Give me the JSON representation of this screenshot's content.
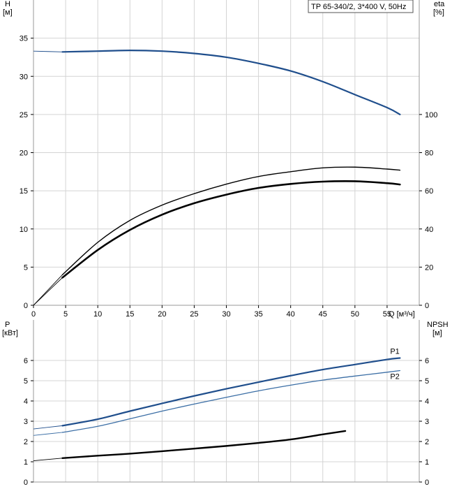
{
  "chart_data": [
    {
      "type": "line",
      "title": "TP 65-340/2, 3*400 V, 50Hz",
      "xlabel": "Q [м³/ч]",
      "ylabel_left": [
        "H",
        "[м]"
      ],
      "ylabel_right": [
        "eta",
        "[%]"
      ],
      "xlim": [
        0,
        60
      ],
      "ylim_left": [
        0,
        40
      ],
      "ylim_right": [
        0,
        160
      ],
      "x_ticks": [
        0,
        5,
        10,
        15,
        20,
        25,
        30,
        35,
        40,
        45,
        50,
        55
      ],
      "y_left_ticks": [
        0,
        5,
        10,
        15,
        20,
        25,
        30,
        35
      ],
      "y_right_ticks": [
        0,
        20,
        40,
        60,
        80,
        100
      ],
      "grid": true,
      "series": [
        {
          "axis": "left",
          "color": "#1f4e8c",
          "width": 2.2,
          "points": [
            [
              4.5,
              33.2
            ],
            [
              10,
              33.3
            ],
            [
              15,
              33.4
            ],
            [
              20,
              33.3
            ],
            [
              25,
              33.0
            ],
            [
              30,
              32.5
            ],
            [
              35,
              31.7
            ],
            [
              40,
              30.7
            ],
            [
              45,
              29.3
            ],
            [
              50,
              27.6
            ],
            [
              55,
              25.9
            ],
            [
              57,
              25.0
            ]
          ],
          "extension": [
            [
              0,
              33.3
            ],
            [
              4.5,
              33.2
            ]
          ]
        },
        {
          "axis": "right",
          "color": "#000000",
          "width": 1.4,
          "points": [
            [
              4.5,
              16
            ],
            [
              10,
              33
            ],
            [
              15,
              44.5
            ],
            [
              20,
              52.5
            ],
            [
              25,
              58.5
            ],
            [
              30,
              63.5
            ],
            [
              35,
              67.5
            ],
            [
              40,
              70
            ],
            [
              45,
              72
            ],
            [
              50,
              72.4
            ],
            [
              55,
              71.4
            ],
            [
              57,
              70.8
            ]
          ],
          "extension": [
            [
              0,
              0
            ],
            [
              4.5,
              16
            ]
          ]
        },
        {
          "axis": "right",
          "color": "#000000",
          "width": 2.6,
          "points": [
            [
              4.5,
              14.5
            ],
            [
              10,
              29
            ],
            [
              15,
              39.5
            ],
            [
              20,
              47.5
            ],
            [
              25,
              53.5
            ],
            [
              30,
              58
            ],
            [
              35,
              61.5
            ],
            [
              40,
              63.6
            ],
            [
              45,
              64.8
            ],
            [
              50,
              65
            ],
            [
              55,
              64
            ],
            [
              57,
              63.3
            ]
          ],
          "extension": [
            [
              0,
              0
            ],
            [
              4.5,
              14.5
            ]
          ]
        }
      ]
    },
    {
      "type": "line",
      "ylabel_left": [
        "P",
        "[кВт]"
      ],
      "ylabel_right": [
        "NPSH",
        "[м]"
      ],
      "xlim": [
        0,
        60
      ],
      "ylim_left": [
        0,
        8
      ],
      "ylim_right": [
        0,
        8
      ],
      "y_left_ticks": [
        0,
        1,
        2,
        3,
        4,
        5,
        6
      ],
      "y_right_ticks": [
        0,
        1,
        2,
        3,
        4,
        5,
        6
      ],
      "grid": true,
      "series": [
        {
          "name": "P1",
          "axis": "left",
          "color": "#1f4e8c",
          "width": 2.2,
          "points": [
            [
              4.5,
              2.78
            ],
            [
              10,
              3.1
            ],
            [
              15,
              3.5
            ],
            [
              20,
              3.88
            ],
            [
              25,
              4.25
            ],
            [
              30,
              4.6
            ],
            [
              35,
              4.93
            ],
            [
              40,
              5.25
            ],
            [
              45,
              5.55
            ],
            [
              50,
              5.8
            ],
            [
              55,
              6.05
            ],
            [
              57,
              6.12
            ]
          ],
          "extension": [
            [
              0,
              2.62
            ],
            [
              4.5,
              2.78
            ]
          ]
        },
        {
          "name": "P2",
          "axis": "left",
          "color": "#3b6ea5",
          "width": 1.3,
          "points": [
            [
              4.5,
              2.45
            ],
            [
              10,
              2.75
            ],
            [
              15,
              3.12
            ],
            [
              20,
              3.5
            ],
            [
              25,
              3.85
            ],
            [
              30,
              4.18
            ],
            [
              35,
              4.5
            ],
            [
              40,
              4.78
            ],
            [
              45,
              5.03
            ],
            [
              50,
              5.23
            ],
            [
              55,
              5.42
            ],
            [
              57,
              5.5
            ]
          ],
          "extension": [
            [
              0,
              2.3
            ],
            [
              4.5,
              2.45
            ]
          ]
        },
        {
          "axis": "right",
          "color": "#000000",
          "width": 2.4,
          "points": [
            [
              4.5,
              1.18
            ],
            [
              10,
              1.3
            ],
            [
              15,
              1.4
            ],
            [
              20,
              1.52
            ],
            [
              25,
              1.65
            ],
            [
              30,
              1.78
            ],
            [
              35,
              1.93
            ],
            [
              40,
              2.1
            ],
            [
              45,
              2.35
            ],
            [
              48.5,
              2.52
            ]
          ],
          "extension": [
            [
              0,
              1.05
            ],
            [
              4.5,
              1.18
            ]
          ]
        }
      ]
    }
  ]
}
